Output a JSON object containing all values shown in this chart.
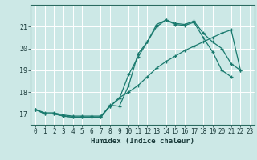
{
  "xlabel": "Humidex (Indice chaleur)",
  "bg_color": "#cce8e6",
  "grid_color": "#ffffff",
  "line_color": "#1a7a6e",
  "xlim": [
    -0.5,
    23.5
  ],
  "ylim": [
    16.5,
    22.0
  ],
  "xticks": [
    0,
    1,
    2,
    3,
    4,
    5,
    6,
    7,
    8,
    9,
    10,
    11,
    12,
    13,
    14,
    15,
    16,
    17,
    18,
    19,
    20,
    21,
    22,
    23
  ],
  "yticks": [
    17,
    18,
    19,
    20,
    21
  ],
  "line1_x": [
    0,
    1,
    2,
    3,
    4,
    5,
    6,
    7,
    8,
    9,
    10,
    11,
    12,
    13,
    14,
    15,
    16,
    17,
    18,
    19,
    20,
    21,
    22
  ],
  "line1_y": [
    17.2,
    17.0,
    17.0,
    16.9,
    16.85,
    16.85,
    16.85,
    16.85,
    17.4,
    17.35,
    18.3,
    19.75,
    20.3,
    21.1,
    21.3,
    21.15,
    21.1,
    21.25,
    20.7,
    20.3,
    20.0,
    19.3,
    19.0
  ],
  "line2_x": [
    0,
    1,
    2,
    3,
    4,
    5,
    6,
    7,
    8,
    9,
    10,
    11,
    12,
    13,
    14,
    15,
    16,
    17,
    18,
    19,
    20,
    21
  ],
  "line2_y": [
    17.2,
    17.0,
    17.0,
    16.9,
    16.85,
    16.85,
    16.85,
    16.85,
    17.35,
    17.7,
    18.8,
    19.6,
    20.3,
    21.0,
    21.3,
    21.1,
    21.05,
    21.2,
    20.5,
    19.85,
    19.0,
    18.7
  ],
  "line3_x": [
    0,
    1,
    2,
    3,
    4,
    5,
    6,
    7,
    8,
    9,
    10,
    11,
    12,
    13,
    14,
    15,
    16,
    17,
    18,
    19,
    20,
    21,
    22
  ],
  "line3_y": [
    17.2,
    17.05,
    17.05,
    16.95,
    16.9,
    16.9,
    16.9,
    16.9,
    17.35,
    17.75,
    18.0,
    18.3,
    18.7,
    19.1,
    19.4,
    19.65,
    19.9,
    20.1,
    20.3,
    20.5,
    20.7,
    20.85,
    19.0
  ]
}
